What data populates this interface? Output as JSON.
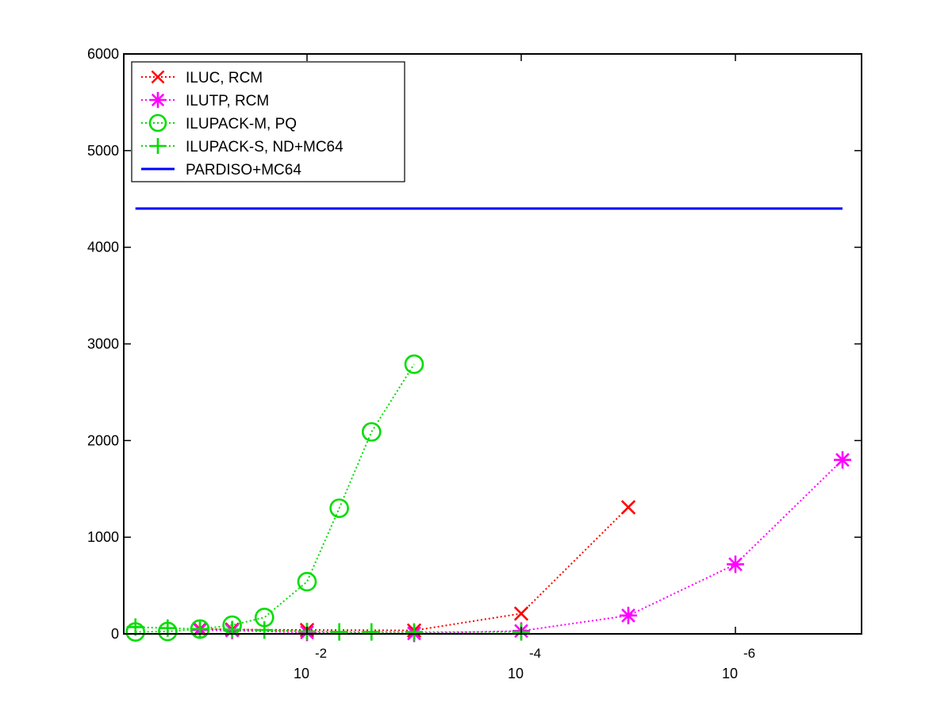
{
  "chart_data": {
    "type": "line",
    "title": "",
    "xlabel": "",
    "ylabel": "",
    "xscale": "log",
    "x_reversed": true,
    "xlim": [
      0.5,
      1e-07
    ],
    "ylim": [
      0,
      6000
    ],
    "grid": false,
    "legend_position": "top-left",
    "y_ticks": [
      0,
      1000,
      2000,
      3000,
      4000,
      5000,
      6000
    ],
    "x_ticks": [
      {
        "value": 0.01,
        "base": "10",
        "exp": "-2"
      },
      {
        "value": 0.0001,
        "base": "10",
        "exp": "-4"
      },
      {
        "value": 1e-06,
        "base": "10",
        "exp": "-6"
      }
    ],
    "series": [
      {
        "name": "ILUC, RCM",
        "color": "#ff0000",
        "marker": "x",
        "line": "dotted",
        "x": [
          0.1,
          0.05,
          0.01,
          0.001,
          0.0001,
          1e-05
        ],
        "y": [
          50,
          45,
          40,
          35,
          210,
          1310
        ]
      },
      {
        "name": "ILUTP, RCM",
        "color": "#ff00ff",
        "marker": "asterisk",
        "line": "dotted",
        "x": [
          0.1,
          0.05,
          0.01,
          0.001,
          0.0001,
          1e-05,
          1e-06,
          1e-07
        ],
        "y": [
          40,
          35,
          15,
          5,
          30,
          190,
          720,
          1800
        ]
      },
      {
        "name": "ILUPACK-M, PQ",
        "color": "#00dd00",
        "marker": "circle",
        "line": "dotted",
        "x": [
          0.4,
          0.2,
          0.1,
          0.05,
          0.025,
          0.01,
          0.005,
          0.0025,
          0.001
        ],
        "y": [
          20,
          25,
          50,
          90,
          170,
          540,
          1300,
          2090,
          2790
        ]
      },
      {
        "name": "ILUPACK-S, ND+MC64",
        "color": "#00dd00",
        "marker": "plus",
        "line": "dotted",
        "x": [
          0.4,
          0.2,
          0.1,
          0.05,
          0.025,
          0.01,
          0.005,
          0.0025,
          0.001,
          0.0001
        ],
        "y": [
          70,
          60,
          50,
          45,
          40,
          25,
          20,
          20,
          20,
          20
        ]
      },
      {
        "name": "PARDISO+MC64",
        "color": "#0000ff",
        "marker": "none",
        "line": "solid",
        "x": [
          0.4,
          1e-07
        ],
        "y": [
          4400,
          4400
        ]
      }
    ]
  }
}
